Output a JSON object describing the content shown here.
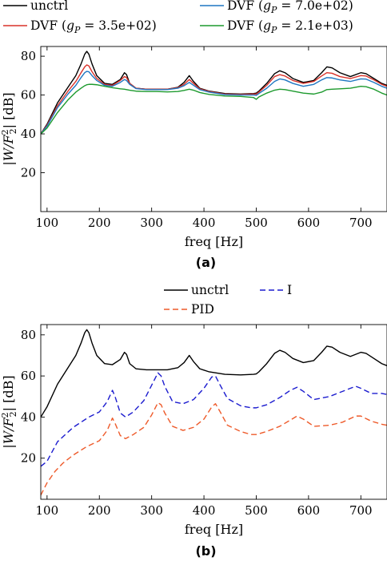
{
  "chart_data": [
    {
      "panel_label": "(a)",
      "type": "line",
      "xlabel": "freq [Hz]",
      "ylabel": "|W/F_2^2| [dB]",
      "xlim": [
        88,
        750
      ],
      "ylim": [
        0,
        85
      ],
      "xticks": [
        100,
        200,
        300,
        400,
        500,
        600,
        700
      ],
      "yticks": [
        20,
        40,
        60,
        80
      ],
      "grid": false,
      "legend_position": "top, above axes, 2 columns",
      "series": [
        {
          "name": "unctrl",
          "color": "#000000",
          "dash": "solid",
          "x": [
            88,
            100,
            120,
            140,
            155,
            165,
            172,
            176,
            180,
            186,
            195,
            210,
            225,
            240,
            248,
            252,
            258,
            270,
            290,
            310,
            330,
            350,
            362,
            372,
            380,
            392,
            410,
            440,
            470,
            495,
            500,
            505,
            520,
            535,
            545,
            555,
            570,
            590,
            610,
            625,
            635,
            645,
            660,
            680,
            700,
            710,
            725,
            740,
            750
          ],
          "y": [
            40,
            45,
            56,
            64,
            70,
            76,
            81,
            82.5,
            81,
            76,
            70,
            66,
            65.5,
            68,
            71.5,
            70.5,
            66,
            63.5,
            63,
            63,
            63,
            64,
            66.5,
            70,
            67,
            63.5,
            62,
            60.8,
            60.5,
            60.8,
            61,
            62,
            66,
            71,
            72.5,
            71.5,
            68.5,
            66.5,
            67.5,
            71.5,
            74.5,
            74,
            71.5,
            69.5,
            71.5,
            71,
            68.5,
            66,
            65
          ]
        },
        {
          "name": "DVF (g_P = 3.5e+02)",
          "color": "#d9322a",
          "dash": "solid",
          "x": [
            88,
            100,
            120,
            140,
            155,
            165,
            172,
            176,
            180,
            186,
            195,
            210,
            225,
            240,
            248,
            252,
            258,
            270,
            290,
            310,
            330,
            350,
            362,
            372,
            380,
            392,
            410,
            440,
            470,
            495,
            500,
            505,
            520,
            535,
            545,
            555,
            570,
            590,
            610,
            625,
            635,
            645,
            660,
            680,
            700,
            710,
            725,
            740,
            750
          ],
          "y": [
            40,
            44.5,
            54.5,
            62,
            67,
            71.5,
            74.5,
            75.5,
            75,
            72,
            68.5,
            65.5,
            65,
            67.5,
            69.5,
            69,
            66,
            63.5,
            63,
            63,
            63,
            63.8,
            65.5,
            68,
            66,
            63.2,
            61.8,
            60.5,
            60.3,
            60.5,
            60.5,
            61.5,
            65,
            69.5,
            70.5,
            69.8,
            67.5,
            66,
            67,
            69.8,
            71.5,
            71.2,
            69.5,
            68.5,
            70,
            69.8,
            67.8,
            65.5,
            64.5
          ]
        },
        {
          "name": "DVF (g_P = 7.0e+02)",
          "color": "#1f77c2",
          "dash": "solid",
          "x": [
            88,
            100,
            120,
            140,
            155,
            165,
            172,
            176,
            180,
            186,
            195,
            210,
            225,
            240,
            248,
            252,
            258,
            270,
            290,
            310,
            330,
            350,
            362,
            372,
            380,
            392,
            410,
            440,
            470,
            495,
            500,
            505,
            520,
            535,
            545,
            555,
            570,
            590,
            610,
            625,
            635,
            645,
            660,
            680,
            700,
            710,
            725,
            740,
            750
          ],
          "y": [
            40,
            44,
            53.5,
            60.5,
            65,
            69,
            71.5,
            72.2,
            72,
            70,
            67.5,
            65,
            64.5,
            66.5,
            68,
            67.5,
            65.5,
            63.3,
            62.8,
            62.8,
            62.8,
            63.5,
            64.8,
            66.5,
            65,
            62.8,
            61.5,
            60.2,
            60,
            60,
            59.8,
            60.8,
            63.5,
            67,
            68.3,
            67.8,
            66,
            64.5,
            65.5,
            67.8,
            69,
            68.8,
            67.8,
            67,
            68.3,
            68.2,
            66.5,
            64.5,
            63.5
          ]
        },
        {
          "name": "DVF (g_P = 2.1e+03)",
          "color": "#1d9a2e",
          "dash": "solid",
          "x": [
            88,
            100,
            120,
            140,
            155,
            165,
            172,
            176,
            180,
            186,
            195,
            210,
            225,
            240,
            248,
            252,
            258,
            270,
            290,
            310,
            330,
            350,
            362,
            372,
            380,
            392,
            410,
            440,
            470,
            495,
            500,
            505,
            520,
            535,
            545,
            555,
            570,
            590,
            610,
            625,
            635,
            645,
            660,
            680,
            700,
            710,
            725,
            740,
            750
          ],
          "y": [
            40,
            43,
            51,
            57.5,
            61.5,
            63.5,
            64.8,
            65.3,
            65.5,
            65.5,
            65.3,
            64.5,
            63.8,
            63.2,
            63,
            62.8,
            62.5,
            62,
            61.8,
            61.8,
            61.6,
            61.8,
            62.4,
            63,
            62.5,
            61.3,
            60.3,
            59.5,
            59.3,
            58.7,
            57.8,
            59,
            61,
            62.5,
            63,
            62.8,
            62,
            61,
            60.5,
            61.5,
            62.8,
            63,
            63.2,
            63.5,
            64.5,
            64.3,
            63,
            61,
            60
          ]
        }
      ]
    },
    {
      "panel_label": "(b)",
      "type": "line",
      "xlabel": "freq [Hz]",
      "ylabel": "|W/F_2^2| [dB]",
      "xlim": [
        88,
        750
      ],
      "ylim": [
        0,
        85
      ],
      "xticks": [
        100,
        200,
        300,
        400,
        500,
        600,
        700
      ],
      "yticks": [
        20,
        40,
        60,
        80
      ],
      "grid": false,
      "legend_position": "top, above axes",
      "series": [
        {
          "name": "unctrl",
          "color": "#000000",
          "dash": "solid",
          "x": [
            88,
            100,
            120,
            140,
            155,
            165,
            172,
            176,
            180,
            186,
            195,
            210,
            225,
            240,
            248,
            252,
            258,
            270,
            290,
            310,
            330,
            350,
            362,
            372,
            380,
            392,
            410,
            440,
            470,
            495,
            500,
            505,
            520,
            535,
            545,
            555,
            570,
            590,
            610,
            625,
            635,
            645,
            660,
            680,
            700,
            710,
            725,
            740,
            750
          ],
          "y": [
            40,
            45,
            56,
            64,
            70,
            76,
            81,
            82.5,
            81,
            76,
            70,
            66,
            65.5,
            68,
            71.5,
            70.5,
            66,
            63.5,
            63,
            63,
            63,
            64,
            66.5,
            70,
            67,
            63.5,
            62,
            60.8,
            60.5,
            60.8,
            61,
            62,
            66,
            71,
            72.5,
            71.5,
            68.5,
            66.5,
            67.5,
            71.5,
            74.5,
            74,
            71.5,
            69.5,
            71.5,
            71,
            68.5,
            66,
            65
          ]
        },
        {
          "name": "I",
          "color": "#1c1ccf",
          "dash": "dashed",
          "x": [
            88,
            100,
            120,
            150,
            180,
            200,
            215,
            225,
            230,
            240,
            250,
            265,
            285,
            300,
            312,
            318,
            325,
            340,
            360,
            380,
            400,
            415,
            422,
            430,
            445,
            470,
            490,
            500,
            520,
            545,
            565,
            578,
            590,
            610,
            640,
            665,
            690,
            700,
            720,
            740,
            750
          ],
          "y": [
            16,
            18.5,
            28,
            35,
            40,
            42.5,
            47.5,
            53,
            50,
            42,
            40,
            42.5,
            48,
            55.5,
            61.5,
            60,
            55,
            47.5,
            46.5,
            48.5,
            54,
            59.5,
            60,
            56,
            49,
            45.5,
            44.5,
            44.5,
            46,
            49.5,
            53,
            54.5,
            52.5,
            48.5,
            50,
            52.5,
            55,
            54,
            51.5,
            51.5,
            51
          ]
        },
        {
          "name": "PID",
          "color": "#ee5a2a",
          "dash": "dashed",
          "x": [
            88,
            92,
            100,
            115,
            130,
            150,
            175,
            200,
            215,
            225,
            230,
            240,
            250,
            265,
            285,
            300,
            312,
            318,
            325,
            340,
            360,
            380,
            400,
            415,
            422,
            430,
            445,
            470,
            490,
            500,
            520,
            545,
            565,
            578,
            590,
            610,
            640,
            665,
            690,
            700,
            720,
            740,
            750
          ],
          "y": [
            2,
            4,
            8,
            13.5,
            17.5,
            21.5,
            25.5,
            28.5,
            33.5,
            39.5,
            37,
            31,
            29.5,
            31.5,
            35,
            41,
            47,
            46,
            42,
            35.5,
            33.5,
            35,
            39,
            45,
            46.5,
            43,
            36,
            33,
            31.5,
            31.5,
            33,
            35.5,
            38.5,
            40.5,
            39,
            35.5,
            36,
            37.5,
            40.5,
            40.5,
            38,
            36.5,
            36
          ]
        }
      ]
    }
  ]
}
